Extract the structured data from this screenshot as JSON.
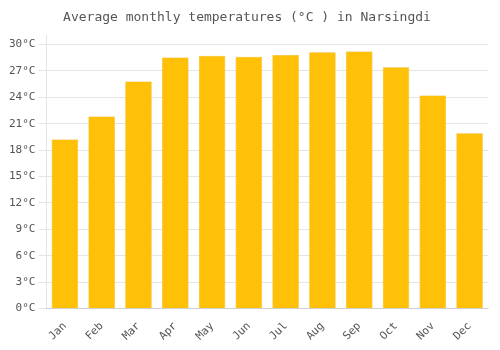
{
  "chart_data": {
    "type": "bar",
    "title": "Average monthly temperatures (°C ) in Narsingdi",
    "categories": [
      "Jan",
      "Feb",
      "Mar",
      "Apr",
      "May",
      "Jun",
      "Jul",
      "Aug",
      "Sep",
      "Oct",
      "Nov",
      "Dec"
    ],
    "values": [
      19.2,
      21.8,
      25.8,
      28.5,
      28.7,
      28.6,
      28.8,
      29.1,
      29.2,
      27.4,
      24.2,
      19.9
    ],
    "color": "#FFC107",
    "ylim": [
      0,
      31
    ],
    "yticks": [
      {
        "value": 0,
        "label": "0°C"
      },
      {
        "value": 3,
        "label": "3°C"
      },
      {
        "value": 6,
        "label": "6°C"
      },
      {
        "value": 9,
        "label": "9°C"
      },
      {
        "value": 12,
        "label": "12°C"
      },
      {
        "value": 15,
        "label": "15°C"
      },
      {
        "value": 18,
        "label": "18°C"
      },
      {
        "value": 21,
        "label": "21°C"
      },
      {
        "value": 24,
        "label": "24°C"
      },
      {
        "value": 27,
        "label": "27°C"
      },
      {
        "value": 30,
        "label": "30°C"
      }
    ],
    "grid": true
  }
}
